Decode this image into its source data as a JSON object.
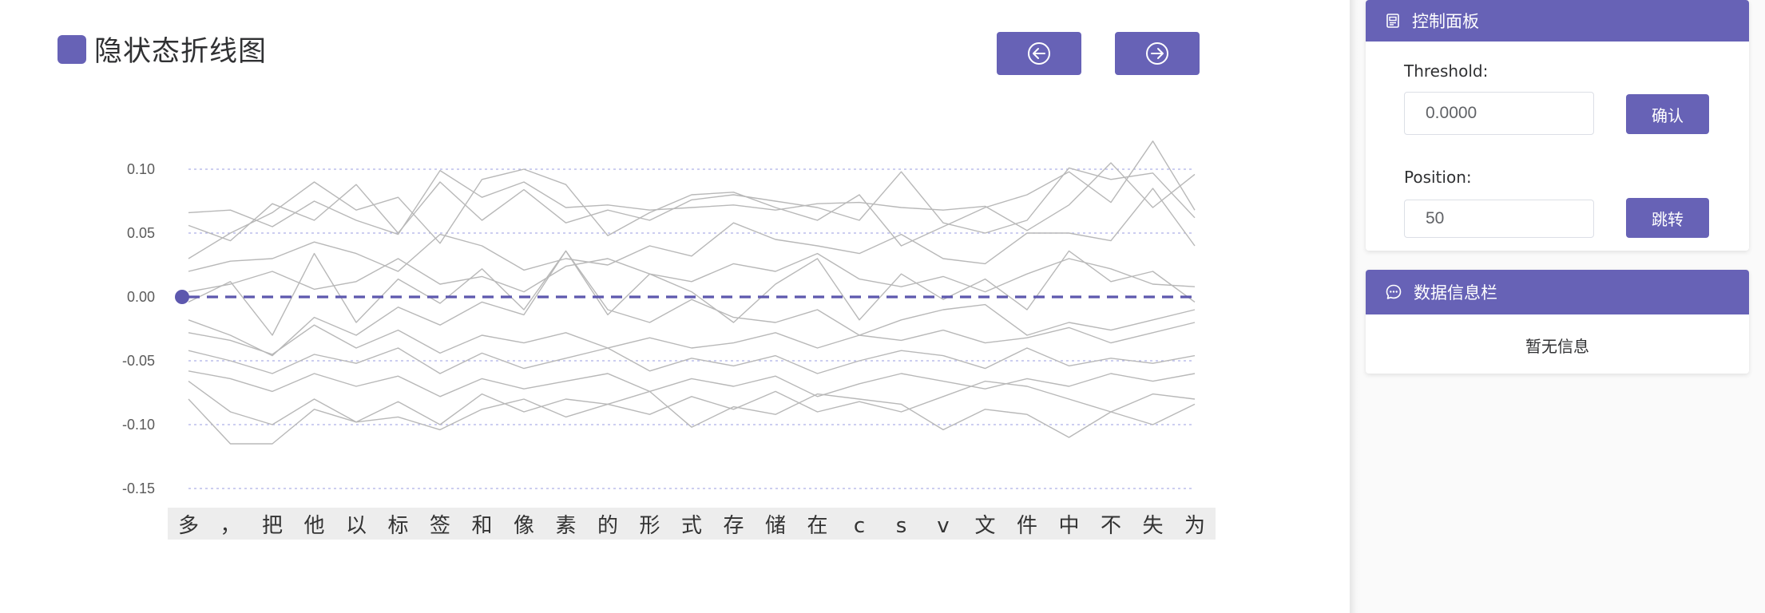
{
  "page": {
    "title": "隐状态折线图"
  },
  "nav": {
    "prev_icon": "arrow-left-circle-icon",
    "next_icon": "arrow-right-circle-icon"
  },
  "colors": {
    "accent": "#6762b6",
    "line": "#b8b8b8",
    "grid": "#aeb0e6",
    "threshold": "#5d58ae"
  },
  "control_panel": {
    "title": "控制面板",
    "icon": "document-icon",
    "threshold_label": "Threshold:",
    "threshold_value": "0.0000",
    "confirm_label": "确认",
    "position_label": "Position:",
    "position_value": "50",
    "jump_label": "跳转"
  },
  "info_panel": {
    "title": "数据信息栏",
    "icon": "chat-icon",
    "empty_text": "暂无信息"
  },
  "chart_data": {
    "type": "line",
    "title": "",
    "xlabel": "",
    "ylabel": "",
    "ylim": [
      -0.15,
      0.12
    ],
    "yticks": [
      "0.10",
      "0.05",
      "0.00",
      "-0.05",
      "-0.10",
      "-0.15"
    ],
    "ytick_values": [
      0.1,
      0.05,
      0.0,
      -0.05,
      -0.1,
      -0.15
    ],
    "grid": "horizontal dashed",
    "categories": [
      "多",
      "，",
      "把",
      "他",
      "以",
      "标",
      "签",
      "和",
      "像",
      "素",
      "的",
      "形",
      "式",
      "存",
      "储",
      "在",
      "c",
      "s",
      "v",
      "文",
      "件",
      "中",
      "不",
      "失",
      "为"
    ],
    "threshold": 0.0,
    "series": [
      {
        "values": [
          0.066,
          0.068,
          0.055,
          0.075,
          0.06,
          0.049,
          0.099,
          0.078,
          0.09,
          0.07,
          0.072,
          0.068,
          0.07,
          0.072,
          0.068,
          0.073,
          0.074,
          0.07,
          0.068,
          0.071,
          0.052,
          0.072,
          0.105,
          0.07,
          0.096
        ]
      },
      {
        "values": [
          0.056,
          0.044,
          0.073,
          0.06,
          0.088,
          0.05,
          0.09,
          0.06,
          0.084,
          0.058,
          0.068,
          0.06,
          0.076,
          0.08,
          0.075,
          0.07,
          0.06,
          0.098,
          0.058,
          0.05,
          0.06,
          0.101,
          0.092,
          0.097,
          0.062
        ]
      },
      {
        "values": [
          0.03,
          0.05,
          0.066,
          0.09,
          0.068,
          0.078,
          0.042,
          0.092,
          0.1,
          0.088,
          0.048,
          0.066,
          0.08,
          0.082,
          0.07,
          0.06,
          0.08,
          0.04,
          0.055,
          0.07,
          0.08,
          0.098,
          0.074,
          0.122,
          0.068
        ]
      },
      {
        "values": [
          0.02,
          0.028,
          0.03,
          0.043,
          0.034,
          0.02,
          0.049,
          0.04,
          0.021,
          0.03,
          0.025,
          0.04,
          0.032,
          0.058,
          0.045,
          0.04,
          0.034,
          0.049,
          0.03,
          0.026,
          0.05,
          0.05,
          0.044,
          0.085,
          0.04
        ]
      },
      {
        "values": [
          0.004,
          0.01,
          0.02,
          0.006,
          0.012,
          0.03,
          0.01,
          0.016,
          0.004,
          0.024,
          0.03,
          0.018,
          0.012,
          0.026,
          0.02,
          0.034,
          0.014,
          0.008,
          0.016,
          0.004,
          0.018,
          0.03,
          0.022,
          0.01,
          0.008
        ]
      },
      {
        "values": [
          -0.004,
          0.012,
          -0.03,
          0.034,
          -0.02,
          0.014,
          -0.005,
          0.022,
          -0.01,
          0.036,
          -0.014,
          0.018,
          0.004,
          -0.02,
          0.01,
          0.03,
          -0.018,
          0.018,
          -0.002,
          0.014,
          -0.01,
          0.036,
          0.012,
          0.02,
          -0.004
        ]
      },
      {
        "values": [
          -0.018,
          -0.03,
          -0.046,
          -0.016,
          -0.03,
          -0.008,
          -0.022,
          -0.004,
          -0.014,
          0.036,
          -0.01,
          -0.02,
          -0.002,
          -0.016,
          -0.02,
          -0.01,
          -0.03,
          -0.018,
          -0.01,
          -0.006,
          -0.03,
          -0.02,
          -0.026,
          -0.018,
          -0.01
        ]
      },
      {
        "values": [
          -0.028,
          -0.034,
          -0.045,
          -0.022,
          -0.04,
          -0.026,
          -0.044,
          -0.03,
          -0.036,
          -0.028,
          -0.04,
          -0.032,
          -0.04,
          -0.036,
          -0.028,
          -0.04,
          -0.03,
          -0.034,
          -0.026,
          -0.036,
          -0.032,
          -0.024,
          -0.036,
          -0.028,
          -0.02
        ]
      },
      {
        "values": [
          -0.042,
          -0.05,
          -0.06,
          -0.045,
          -0.052,
          -0.04,
          -0.06,
          -0.044,
          -0.056,
          -0.048,
          -0.04,
          -0.058,
          -0.048,
          -0.054,
          -0.046,
          -0.06,
          -0.05,
          -0.042,
          -0.046,
          -0.056,
          -0.04,
          -0.054,
          -0.048,
          -0.052,
          -0.046
        ]
      },
      {
        "values": [
          -0.058,
          -0.064,
          -0.074,
          -0.06,
          -0.07,
          -0.062,
          -0.078,
          -0.064,
          -0.072,
          -0.066,
          -0.06,
          -0.074,
          -0.064,
          -0.07,
          -0.062,
          -0.078,
          -0.068,
          -0.06,
          -0.066,
          -0.072,
          -0.064,
          -0.07,
          -0.06,
          -0.066,
          -0.06
        ]
      },
      {
        "values": [
          -0.066,
          -0.09,
          -0.1,
          -0.08,
          -0.098,
          -0.082,
          -0.1,
          -0.076,
          -0.09,
          -0.08,
          -0.084,
          -0.092,
          -0.078,
          -0.088,
          -0.074,
          -0.09,
          -0.082,
          -0.09,
          -0.078,
          -0.066,
          -0.07,
          -0.08,
          -0.09,
          -0.076,
          -0.08
        ]
      },
      {
        "values": [
          -0.08,
          -0.115,
          -0.115,
          -0.088,
          -0.098,
          -0.094,
          -0.104,
          -0.088,
          -0.08,
          -0.094,
          -0.084,
          -0.074,
          -0.102,
          -0.086,
          -0.092,
          -0.076,
          -0.08,
          -0.084,
          -0.104,
          -0.088,
          -0.092,
          -0.11,
          -0.09,
          -0.1,
          -0.084
        ]
      }
    ]
  }
}
